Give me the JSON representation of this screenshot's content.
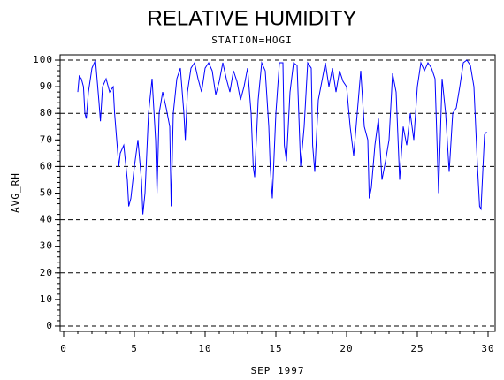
{
  "chart_data": {
    "type": "line",
    "title": "RELATIVE HUMIDITY",
    "subtitle": "STATION=HOGI",
    "x_label": "SEP 1997",
    "y_label": "AVG_RH",
    "xlim": [
      -0.25,
      30.5
    ],
    "ylim": [
      -2,
      102
    ],
    "xticks": [
      0,
      5,
      10,
      15,
      20,
      25,
      30
    ],
    "yticks": [
      0,
      10,
      20,
      30,
      40,
      50,
      60,
      70,
      80,
      90,
      100
    ],
    "xminorticks": [
      0,
      1,
      2,
      3,
      4,
      5,
      6,
      7,
      8,
      9,
      10,
      11,
      12,
      13,
      14,
      15,
      16,
      17,
      18,
      19,
      20,
      21,
      22,
      23,
      24,
      25,
      26,
      27,
      28,
      29,
      30
    ],
    "yminorticks": [
      0,
      2,
      4,
      6,
      8,
      10,
      12,
      14,
      16,
      18,
      20,
      22,
      24,
      26,
      28,
      30,
      32,
      34,
      36,
      38,
      40,
      42,
      44,
      46,
      48,
      50,
      52,
      54,
      56,
      58,
      60,
      62,
      64,
      66,
      68,
      70,
      72,
      74,
      76,
      78,
      80,
      82,
      84,
      86,
      88,
      90,
      92,
      94,
      96,
      98,
      100
    ],
    "reference_lines": [
      0,
      20,
      40,
      60,
      80,
      100
    ],
    "color": "#0000ff",
    "x": [
      1.0,
      1.1,
      1.25,
      1.4,
      1.5,
      1.6,
      1.75,
      2.0,
      2.25,
      2.5,
      2.6,
      2.75,
      3.0,
      3.25,
      3.5,
      3.6,
      3.75,
      3.9,
      4.0,
      4.25,
      4.5,
      4.6,
      4.75,
      5.0,
      5.25,
      5.5,
      5.6,
      5.75,
      6.0,
      6.25,
      6.5,
      6.6,
      6.75,
      7.0,
      7.25,
      7.5,
      7.6,
      7.75,
      8.0,
      8.25,
      8.5,
      8.6,
      8.75,
      9.0,
      9.25,
      9.5,
      9.75,
      10.0,
      10.25,
      10.5,
      10.75,
      11.0,
      11.25,
      11.5,
      11.75,
      12.0,
      12.25,
      12.5,
      12.75,
      13.0,
      13.25,
      13.4,
      13.5,
      13.75,
      14.0,
      14.25,
      14.5,
      14.6,
      14.75,
      15.0,
      15.25,
      15.5,
      15.6,
      15.75,
      16.0,
      16.25,
      16.5,
      16.75,
      17.0,
      17.25,
      17.5,
      17.6,
      17.75,
      18.0,
      18.25,
      18.5,
      18.75,
      19.0,
      19.25,
      19.5,
      19.75,
      20.0,
      20.25,
      20.5,
      20.75,
      21.0,
      21.25,
      21.5,
      21.6,
      21.75,
      22.0,
      22.25,
      22.5,
      22.75,
      23.0,
      23.25,
      23.5,
      23.75,
      24.0,
      24.25,
      24.5,
      24.75,
      25.0,
      25.25,
      25.5,
      25.75,
      26.0,
      26.25,
      26.5,
      26.75,
      27.0,
      27.25,
      27.5,
      27.75,
      28.0,
      28.25,
      28.5,
      28.75,
      29.0,
      29.25,
      29.4,
      29.5,
      29.75,
      29.9
    ],
    "values": [
      88,
      94,
      93,
      90,
      80,
      78,
      88,
      97,
      100,
      84,
      77,
      90,
      93,
      88,
      90,
      80,
      70,
      60,
      65,
      68,
      55,
      45,
      48,
      60,
      70,
      55,
      42,
      50,
      80,
      93,
      70,
      50,
      80,
      88,
      82,
      75,
      45,
      80,
      93,
      97,
      80,
      70,
      88,
      97,
      99,
      93,
      88,
      97,
      99,
      96,
      87,
      92,
      99,
      93,
      88,
      96,
      92,
      85,
      90,
      97,
      80,
      60,
      56,
      85,
      99,
      96,
      75,
      60,
      48,
      80,
      99,
      99,
      68,
      62,
      88,
      99,
      98,
      60,
      75,
      99,
      97,
      68,
      58,
      85,
      92,
      99,
      90,
      97,
      88,
      96,
      92,
      90,
      75,
      64,
      80,
      96,
      75,
      70,
      48,
      52,
      68,
      78,
      55,
      62,
      70,
      95,
      88,
      55,
      75,
      68,
      80,
      70,
      90,
      99,
      96,
      99,
      97,
      93,
      50,
      93,
      80,
      58,
      80,
      82,
      90,
      99,
      100,
      98,
      90,
      60,
      45,
      44,
      72,
      73
    ]
  }
}
